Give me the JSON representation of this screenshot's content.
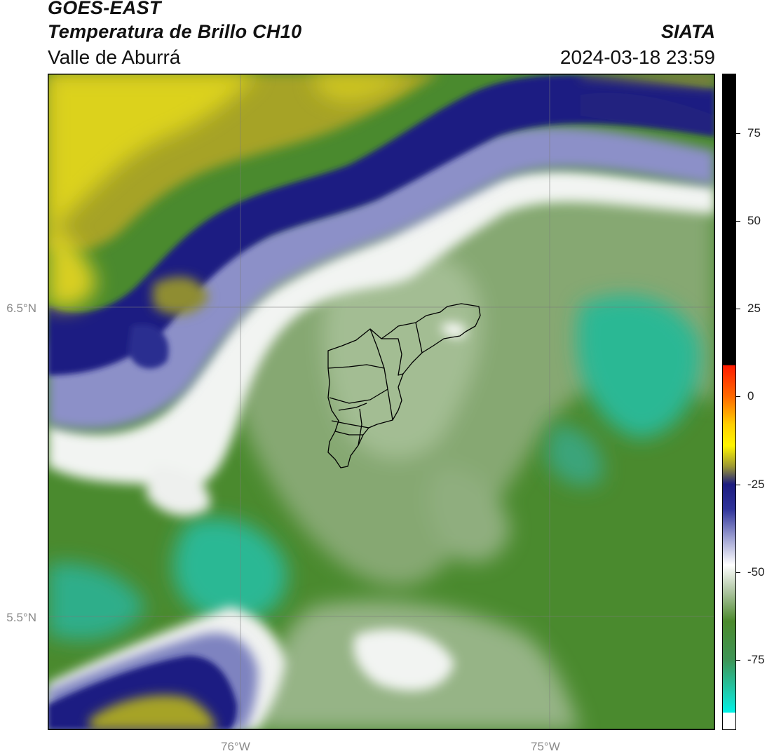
{
  "header": {
    "title_line1": "GOES-EAST",
    "title_line2": "Temperatura de Brillo CH10",
    "subtitle": "Valle de Aburrá",
    "organization": "SIATA",
    "datetime": "2024-03-18 23:59"
  },
  "map": {
    "lat_labels": [
      "6.5°N",
      "5.5°N"
    ],
    "lon_labels": [
      "76°W",
      "75°W"
    ],
    "gridlines": true,
    "colors": {
      "yellow": "#dcd21e",
      "olive": "#a6a326",
      "navy": "#1a1c82",
      "blue": "#3b3f9e",
      "white": "#f2f4f2",
      "pale_green": "#b4c8aa",
      "light_green": "#7fa26c",
      "green": "#4a8a2e",
      "teal": "#2bb894"
    }
  },
  "colorbar": {
    "ticks": [
      "75",
      "50",
      "25",
      "0",
      "-25",
      "-50",
      "-75"
    ],
    "range": [
      -95,
      92
    ],
    "stops": [
      {
        "value": 92,
        "color": "#000000"
      },
      {
        "value": 9,
        "color": "#000000"
      },
      {
        "value": 8.9,
        "color": "#ff1a00"
      },
      {
        "value": 0,
        "color": "#ff6a00"
      },
      {
        "value": -8,
        "color": "#ffd000"
      },
      {
        "value": -14,
        "color": "#fff500"
      },
      {
        "value": -20,
        "color": "#9a9634"
      },
      {
        "value": -25,
        "color": "#1c1c80"
      },
      {
        "value": -32,
        "color": "#2f339a"
      },
      {
        "value": -40,
        "color": "#9a9dd0"
      },
      {
        "value": -48,
        "color": "#ffffff"
      },
      {
        "value": -56,
        "color": "#a9c29b"
      },
      {
        "value": -64,
        "color": "#4b8a2c"
      },
      {
        "value": -75,
        "color": "#3e9556"
      },
      {
        "value": -86,
        "color": "#17d7c0"
      },
      {
        "value": -90,
        "color": "#00f2e6"
      },
      {
        "value": -90.1,
        "color": "#ffffff"
      },
      {
        "value": -95,
        "color": "#ffffff"
      }
    ]
  }
}
